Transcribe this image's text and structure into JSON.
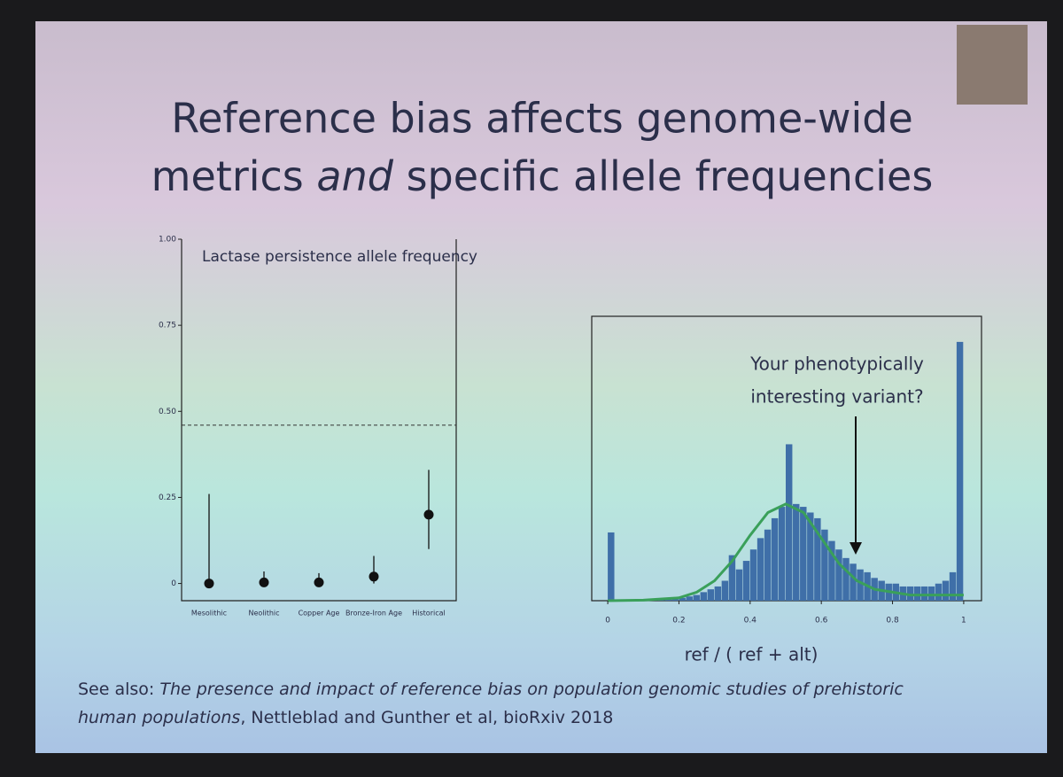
{
  "slide": {
    "title": [
      "Reference bias affects genome-wide",
      "metrics",
      "and",
      "specific allele frequencies"
    ],
    "footnote": [
      "See also:",
      "The presence and impact of reference bias on population genomic studies of prehistoric human populations",
      ", Nettleblad and Gunther et al, bioRxiv 2018"
    ]
  },
  "chart_data": [
    {
      "type": "errorbar",
      "annotation": "Lactase persistence allele frequency",
      "categories": [
        "Mesolithic",
        "Neolithic",
        "Copper Age",
        "Bronze-Iron Age",
        "Historical"
      ],
      "values": [
        0,
        0.003,
        0.003,
        0.02,
        0.2
      ],
      "lower": [
        0,
        0,
        0,
        0,
        0.1
      ],
      "upper": [
        0.26,
        0.035,
        0.03,
        0.08,
        0.33
      ],
      "hline": 0.46,
      "color": "#111111",
      "ylim": [
        -0.05,
        1.0
      ],
      "yticks": [
        0,
        0.25,
        {
          "value": 0.5,
          "label": "0.50"
        },
        0.75,
        {
          "value": 1.0,
          "label": "1.00"
        }
      ]
    },
    {
      "type": "histogram",
      "annotation": [
        "Your phenotypically",
        "interesting variant?"
      ],
      "xlabel": "ref / ( ref + alt)",
      "bins": [
        0,
        0.02,
        0.04,
        0.06,
        0.08,
        0.1,
        0.12,
        0.14,
        0.16,
        0.18,
        0.2,
        0.22,
        0.24,
        0.26,
        0.28,
        0.3,
        0.32,
        0.34,
        0.36,
        0.38,
        0.4,
        0.42,
        0.44,
        0.46,
        0.48,
        0.5,
        0.52,
        0.54,
        0.56,
        0.58,
        0.6,
        0.62,
        0.64,
        0.66,
        0.68,
        0.7,
        0.72,
        0.74,
        0.76,
        0.78,
        0.8,
        0.82,
        0.84,
        0.86,
        0.88,
        0.9,
        0.92,
        0.94,
        0.96,
        0.98,
        1.0
      ],
      "values": [
        24,
        0,
        0,
        0,
        0,
        0.3,
        0.3,
        0.5,
        0.5,
        0.8,
        1,
        1.5,
        2,
        3,
        4,
        5,
        7,
        16,
        11,
        14,
        18,
        22,
        25,
        29,
        33,
        55,
        34,
        33,
        31,
        29,
        25,
        21,
        18,
        15,
        13,
        11,
        10,
        8,
        7,
        6,
        6,
        5,
        5,
        5,
        5,
        5,
        6,
        7,
        10,
        91
      ],
      "color": "#3f6fa8",
      "curve": {
        "x": [
          0,
          0.1,
          0.2,
          0.25,
          0.3,
          0.35,
          0.4,
          0.45,
          0.5,
          0.55,
          0.6,
          0.65,
          0.7,
          0.75,
          0.8,
          0.85,
          0.9,
          0.95,
          1.0
        ],
        "values": [
          0,
          0.2,
          1,
          3,
          7,
          14,
          23,
          31,
          34,
          31,
          22,
          13,
          7,
          4,
          3,
          2,
          2,
          2,
          2
        ],
        "color": "#3aa05a"
      },
      "xlim": [
        -0.045,
        1.05
      ],
      "ylim": [
        0,
        100
      ],
      "xticks": [
        0,
        0.2,
        0.4,
        0.6,
        0.8,
        1
      ]
    }
  ]
}
